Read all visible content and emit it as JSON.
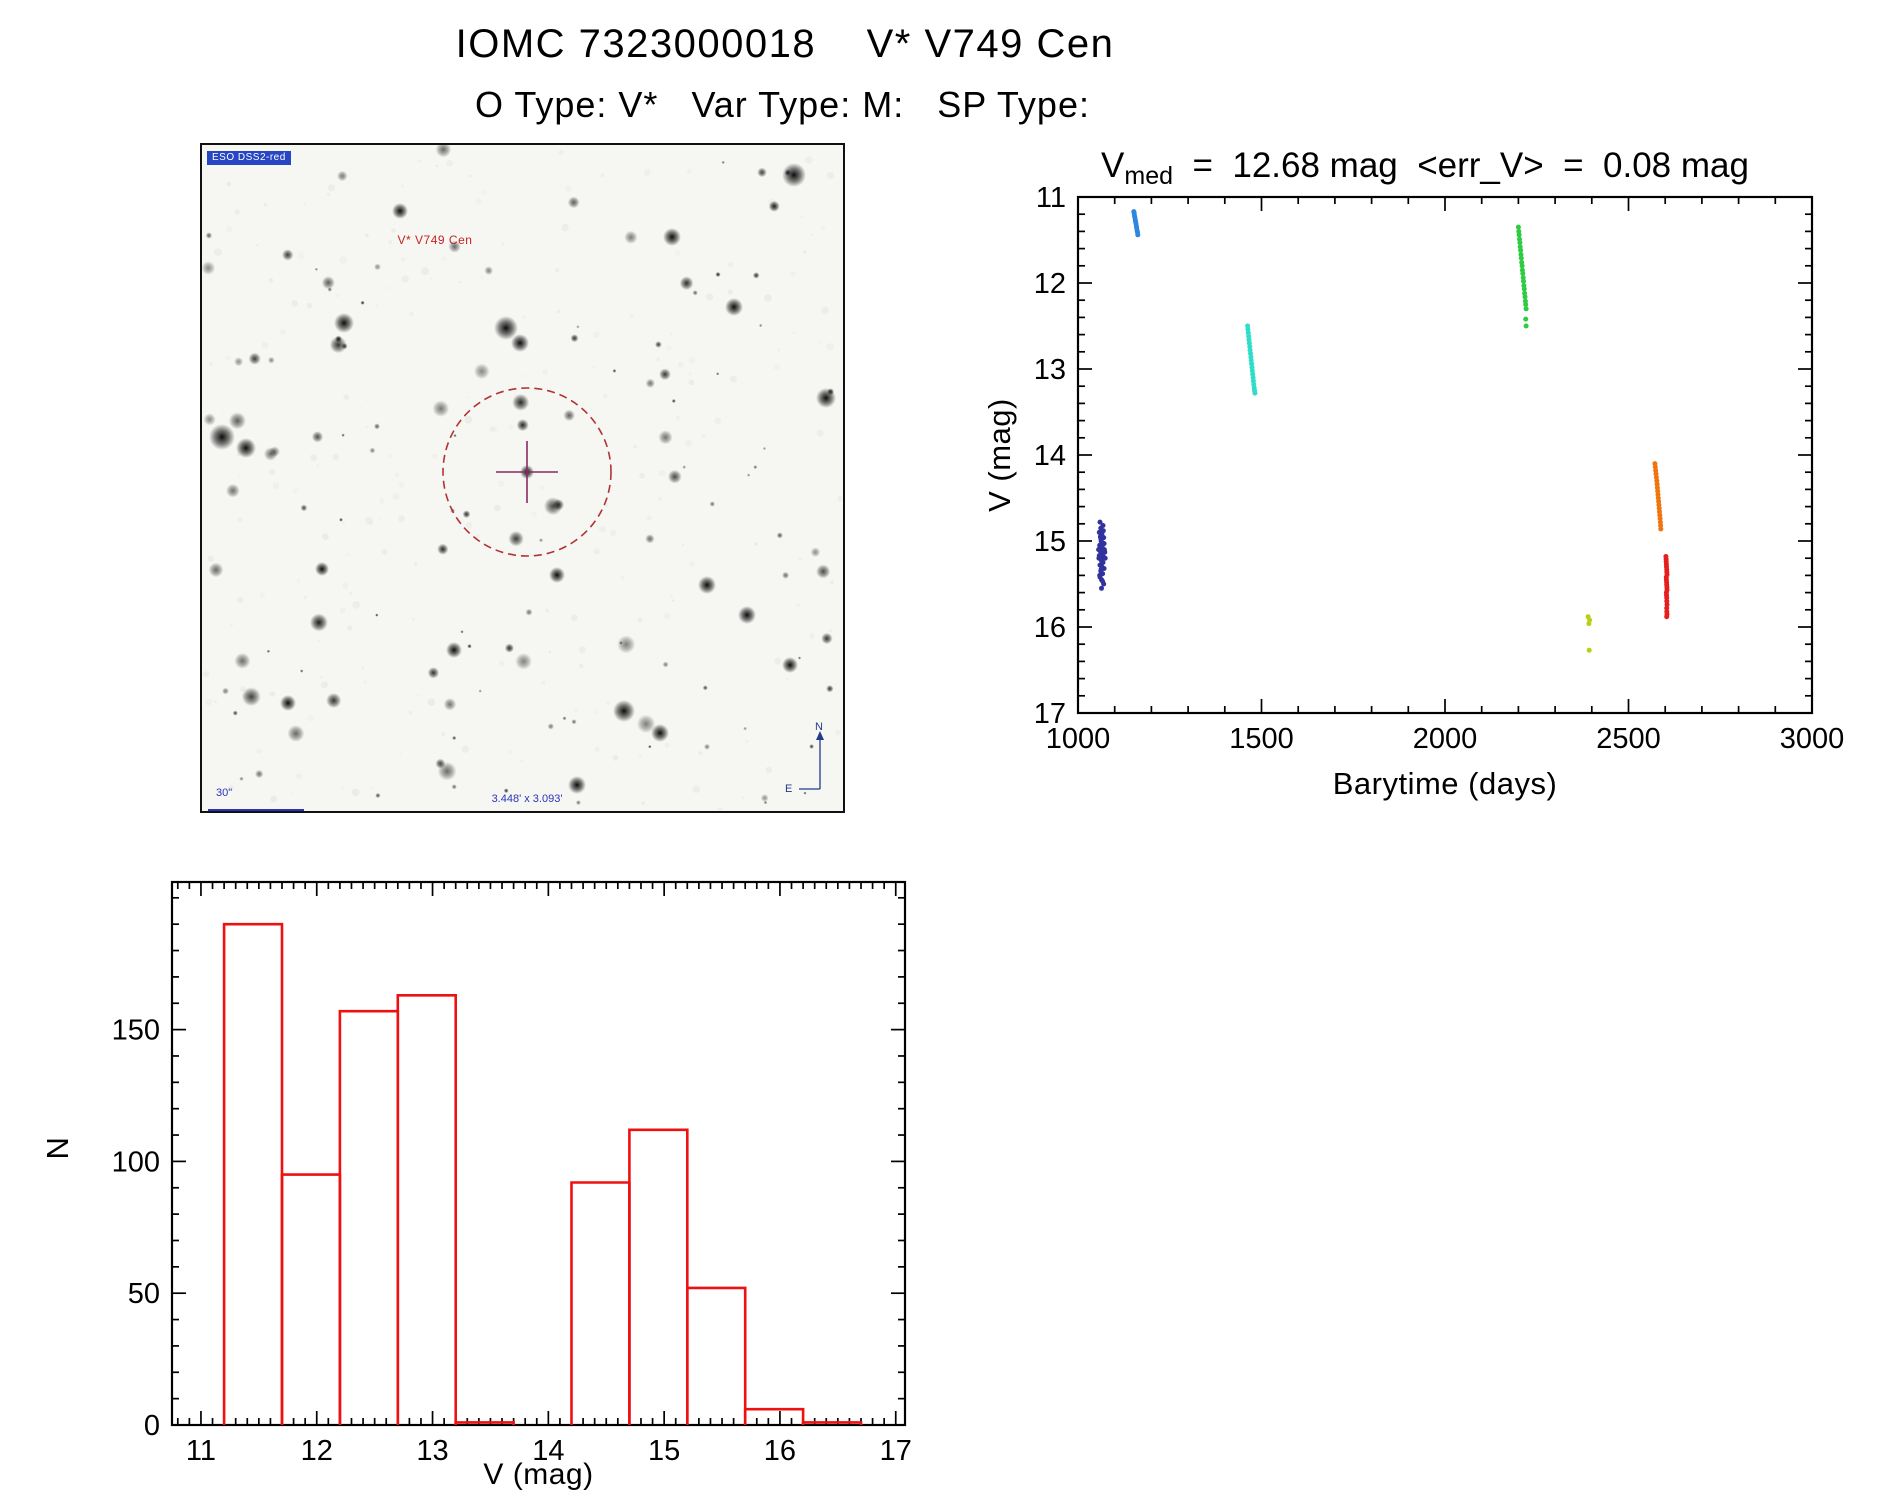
{
  "page": {
    "title": "IOMC 7323000018    V* V749 Cen",
    "subtitle": "O Type: V*   Var Type: M:   SP Type:"
  },
  "finding_chart": {
    "survey_label": "ESO DSS2-red",
    "target_label": "V* V749 Cen",
    "scale_label": "30\"",
    "fov_label": "3.448' x 3.093'",
    "compass_north": "N",
    "compass_east": "E"
  },
  "light_curve_title": {
    "var": "V",
    "sub": "med",
    "rest": "  =  12.68 mag  <err_V>  =  0.08 mag"
  },
  "chart_data": [
    {
      "type": "scatter",
      "title": "Vmed = 12.68 mag <err_V> = 0.08 mag",
      "xlabel": "Barytime (days)",
      "ylabel": "V (mag)",
      "xlim": [
        1000,
        3000
      ],
      "ylim": [
        11,
        17
      ],
      "y_inverted": true,
      "grid": false,
      "legend": "none",
      "xticks": [
        1000,
        1500,
        2000,
        2500,
        3000
      ],
      "yticks": [
        11,
        12,
        13,
        14,
        15,
        16,
        17
      ],
      "x_minor_step": 100,
      "y_minor_step": 0.2,
      "series": [
        {
          "name": "cluster-1",
          "color": "#32329e",
          "points": [
            [
              1060,
              14.78
            ],
            [
              1062,
              14.85
            ],
            [
              1058,
              14.9
            ],
            [
              1065,
              14.92
            ],
            [
              1070,
              14.96
            ],
            [
              1063,
              15.0
            ],
            [
              1067,
              15.02
            ],
            [
              1059,
              15.05
            ],
            [
              1064,
              15.08
            ],
            [
              1072,
              15.1
            ],
            [
              1061,
              15.12
            ],
            [
              1066,
              15.15
            ],
            [
              1069,
              15.18
            ],
            [
              1057,
              15.2
            ],
            [
              1063,
              15.22
            ],
            [
              1068,
              15.25
            ],
            [
              1060,
              15.28
            ],
            [
              1065,
              15.3
            ],
            [
              1071,
              15.32
            ],
            [
              1062,
              15.35
            ],
            [
              1067,
              15.38
            ],
            [
              1059,
              15.4
            ],
            [
              1064,
              15.45
            ],
            [
              1070,
              15.5
            ],
            [
              1061,
              14.95
            ],
            [
              1066,
              15.07
            ],
            [
              1073,
              15.13
            ],
            [
              1058,
              15.17
            ],
            [
              1063,
              15.33
            ],
            [
              1069,
              14.88
            ],
            [
              1060,
              15.42
            ],
            [
              1065,
              15.24
            ],
            [
              1071,
              15.03
            ],
            [
              1062,
              14.97
            ],
            [
              1067,
              15.47
            ],
            [
              1064,
              15.55
            ],
            [
              1068,
              14.82
            ],
            [
              1056,
              15.1
            ],
            [
              1074,
              15.2
            ],
            [
              1060,
              15.06
            ]
          ]
        },
        {
          "name": "cluster-2",
          "color": "#2e86de",
          "points": [
            [
              1152,
              11.17
            ],
            [
              1153,
              11.19
            ],
            [
              1154,
              11.22
            ],
            [
              1155,
              11.24
            ],
            [
              1156,
              11.27
            ],
            [
              1157,
              11.29
            ],
            [
              1158,
              11.31
            ],
            [
              1159,
              11.34
            ],
            [
              1160,
              11.36
            ],
            [
              1161,
              11.39
            ],
            [
              1162,
              11.41
            ],
            [
              1163,
              11.44
            ]
          ]
        },
        {
          "name": "cluster-3",
          "color": "#30ddc9",
          "points": [
            [
              1462,
              12.5
            ],
            [
              1463,
              12.54
            ],
            [
              1464,
              12.58
            ],
            [
              1465,
              12.62
            ],
            [
              1466,
              12.66
            ],
            [
              1467,
              12.7
            ],
            [
              1468,
              12.74
            ],
            [
              1469,
              12.78
            ],
            [
              1470,
              12.82
            ],
            [
              1471,
              12.86
            ],
            [
              1472,
              12.9
            ],
            [
              1473,
              12.94
            ],
            [
              1474,
              12.98
            ],
            [
              1475,
              13.02
            ],
            [
              1476,
              13.06
            ],
            [
              1477,
              13.1
            ],
            [
              1478,
              13.14
            ],
            [
              1479,
              13.18
            ],
            [
              1480,
              13.22
            ],
            [
              1481,
              13.25
            ],
            [
              1482,
              13.28
            ]
          ]
        },
        {
          "name": "cluster-4",
          "color": "#2ecc42",
          "points": [
            [
              2200,
              11.35
            ],
            [
              2201,
              11.4
            ],
            [
              2202,
              11.44
            ],
            [
              2203,
              11.49
            ],
            [
              2204,
              11.53
            ],
            [
              2205,
              11.58
            ],
            [
              2206,
              11.62
            ],
            [
              2207,
              11.67
            ],
            [
              2208,
              11.71
            ],
            [
              2209,
              11.76
            ],
            [
              2210,
              11.8
            ],
            [
              2211,
              11.85
            ],
            [
              2212,
              11.89
            ],
            [
              2213,
              11.94
            ],
            [
              2214,
              11.98
            ],
            [
              2215,
              12.03
            ],
            [
              2216,
              12.07
            ],
            [
              2217,
              12.12
            ],
            [
              2218,
              12.16
            ],
            [
              2219,
              12.21
            ],
            [
              2220,
              12.25
            ],
            [
              2221,
              12.3
            ],
            [
              2220,
              12.42
            ],
            [
              2221,
              12.5
            ]
          ]
        },
        {
          "name": "cluster-5",
          "color": "#b9cf12",
          "points": [
            [
              2390,
              15.88
            ],
            [
              2392,
              15.96
            ],
            [
              2394,
              15.92
            ],
            [
              2393,
              16.27
            ]
          ]
        },
        {
          "name": "cluster-6",
          "color": "#f2740e",
          "points": [
            [
              2572,
              14.1
            ],
            [
              2573,
              14.14
            ],
            [
              2574,
              14.18
            ],
            [
              2575,
              14.22
            ],
            [
              2576,
              14.26
            ],
            [
              2577,
              14.3
            ],
            [
              2578,
              14.34
            ],
            [
              2578.8,
              14.38
            ],
            [
              2579.6,
              14.42
            ],
            [
              2580.4,
              14.46
            ],
            [
              2581.2,
              14.5
            ],
            [
              2582,
              14.54
            ],
            [
              2582.8,
              14.58
            ],
            [
              2583.6,
              14.62
            ],
            [
              2584.4,
              14.66
            ],
            [
              2585.2,
              14.7
            ],
            [
              2586,
              14.74
            ],
            [
              2586.8,
              14.78
            ],
            [
              2587.4,
              14.82
            ],
            [
              2588,
              14.86
            ]
          ]
        },
        {
          "name": "cluster-7",
          "color": "#e61e1e",
          "points": [
            [
              2602,
              15.18
            ],
            [
              2602.4,
              15.21
            ],
            [
              2602.8,
              15.24
            ],
            [
              2603.2,
              15.27
            ],
            [
              2603.6,
              15.3
            ],
            [
              2604,
              15.33
            ],
            [
              2604.4,
              15.36
            ],
            [
              2604.8,
              15.39
            ],
            [
              2603,
              15.42
            ],
            [
              2603.4,
              15.45
            ],
            [
              2603.8,
              15.48
            ],
            [
              2604.2,
              15.51
            ],
            [
              2604.6,
              15.54
            ],
            [
              2605,
              15.57
            ],
            [
              2603.2,
              15.6
            ],
            [
              2603.6,
              15.63
            ],
            [
              2604,
              15.66
            ],
            [
              2604.4,
              15.7
            ],
            [
              2604.8,
              15.74
            ],
            [
              2604,
              15.78
            ],
            [
              2604.4,
              15.82
            ],
            [
              2604.8,
              15.85
            ],
            [
              2604.2,
              15.88
            ]
          ]
        }
      ]
    },
    {
      "type": "bar",
      "title": "",
      "xlabel": "V (mag)",
      "ylabel": "N",
      "xlim": [
        10.75,
        17.08
      ],
      "ylim": [
        0,
        206
      ],
      "grid": false,
      "xticks": [
        11,
        12,
        13,
        14,
        15,
        16,
        17
      ],
      "yticks": [
        0,
        50,
        100,
        150
      ],
      "x_minor_step": 0.1,
      "y_minor_step": 10,
      "bin_width": 0.5,
      "color": "#ee1111",
      "bins": [
        {
          "x": 11.2,
          "n": 190
        },
        {
          "x": 11.7,
          "n": 95
        },
        {
          "x": 12.2,
          "n": 157
        },
        {
          "x": 12.7,
          "n": 163
        },
        {
          "x": 13.2,
          "n": 1
        },
        {
          "x": 13.7,
          "n": 0
        },
        {
          "x": 14.2,
          "n": 92
        },
        {
          "x": 14.7,
          "n": 112
        },
        {
          "x": 15.2,
          "n": 52
        },
        {
          "x": 15.7,
          "n": 6
        },
        {
          "x": 16.2,
          "n": 1
        }
      ]
    }
  ]
}
